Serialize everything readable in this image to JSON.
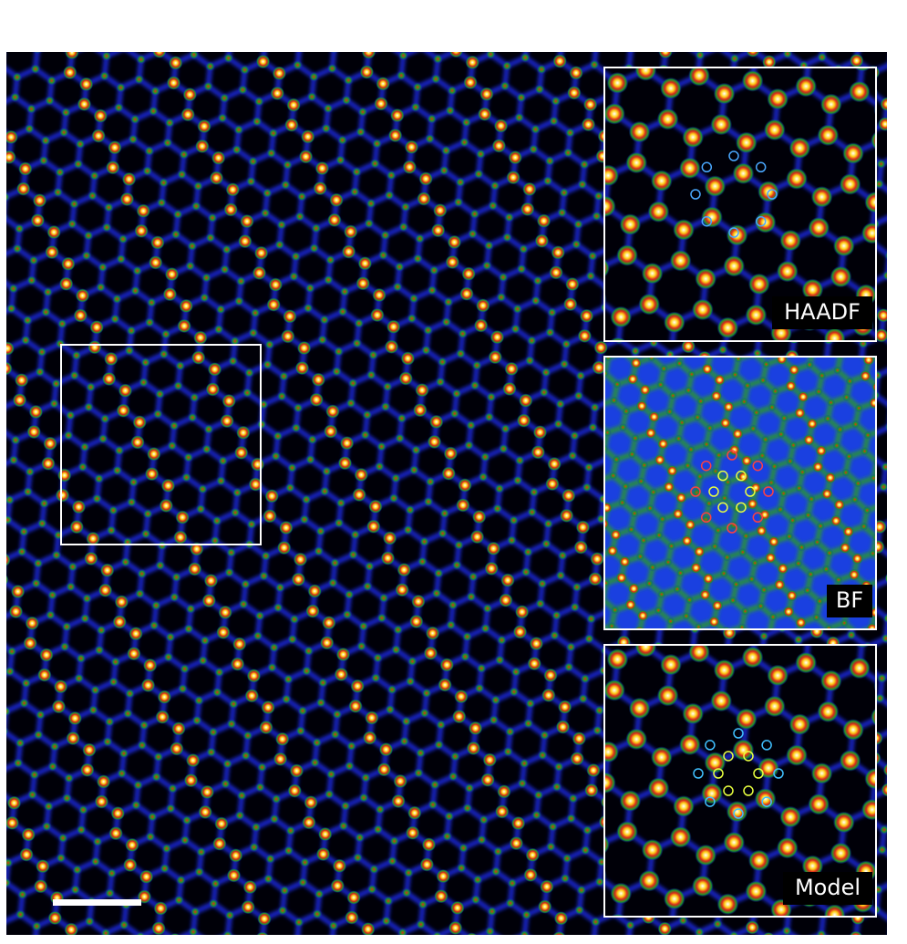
{
  "insets": [
    {
      "label": "HAADF"
    },
    {
      "label": "BF"
    },
    {
      "label": "Model"
    }
  ]
}
